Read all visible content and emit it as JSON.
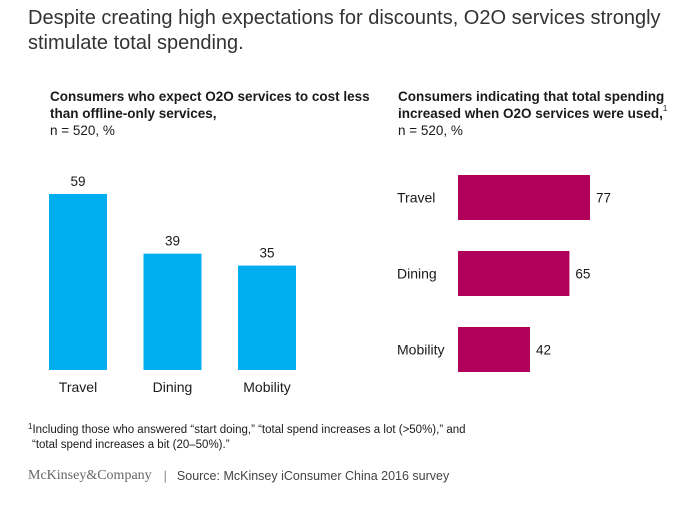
{
  "title": "Despite creating high expectations for discounts, O2O services strongly stimulate total spending.",
  "left_panel": {
    "title": "Consumers who expect O2O services to cost less than offline-only services,",
    "subtitle": "n = 520, %"
  },
  "right_panel": {
    "title": "Consumers indicating that total spending increased when O2O services were used,",
    "footnote_marker": "1",
    "subtitle": "n = 520, %"
  },
  "chart_data": [
    {
      "type": "bar",
      "orientation": "vertical",
      "title": "Consumers who expect O2O services to cost less than offline-only services, n = 520, %",
      "categories": [
        "Travel",
        "Dining",
        "Mobility"
      ],
      "values": [
        59,
        39,
        35
      ],
      "color": "#00aeef",
      "ylim": [
        0,
        59
      ]
    },
    {
      "type": "bar",
      "orientation": "horizontal",
      "title": "Consumers indicating that total spending increased when O2O services were used, n = 520, %",
      "categories": [
        "Travel",
        "Dining",
        "Mobility"
      ],
      "values": [
        77,
        65,
        42
      ],
      "color": "#b0005a",
      "xlim": [
        0,
        77
      ]
    }
  ],
  "footnote": {
    "marker": "1",
    "line1": "Including those who answered “start doing,” “total spend increases a lot (>50%),” and",
    "line2": "“total spend increases a bit (20–50%).”"
  },
  "footer": {
    "logo": "McKinsey&Company",
    "separator": "|",
    "source": "Source: McKinsey iConsumer China 2016 survey"
  }
}
